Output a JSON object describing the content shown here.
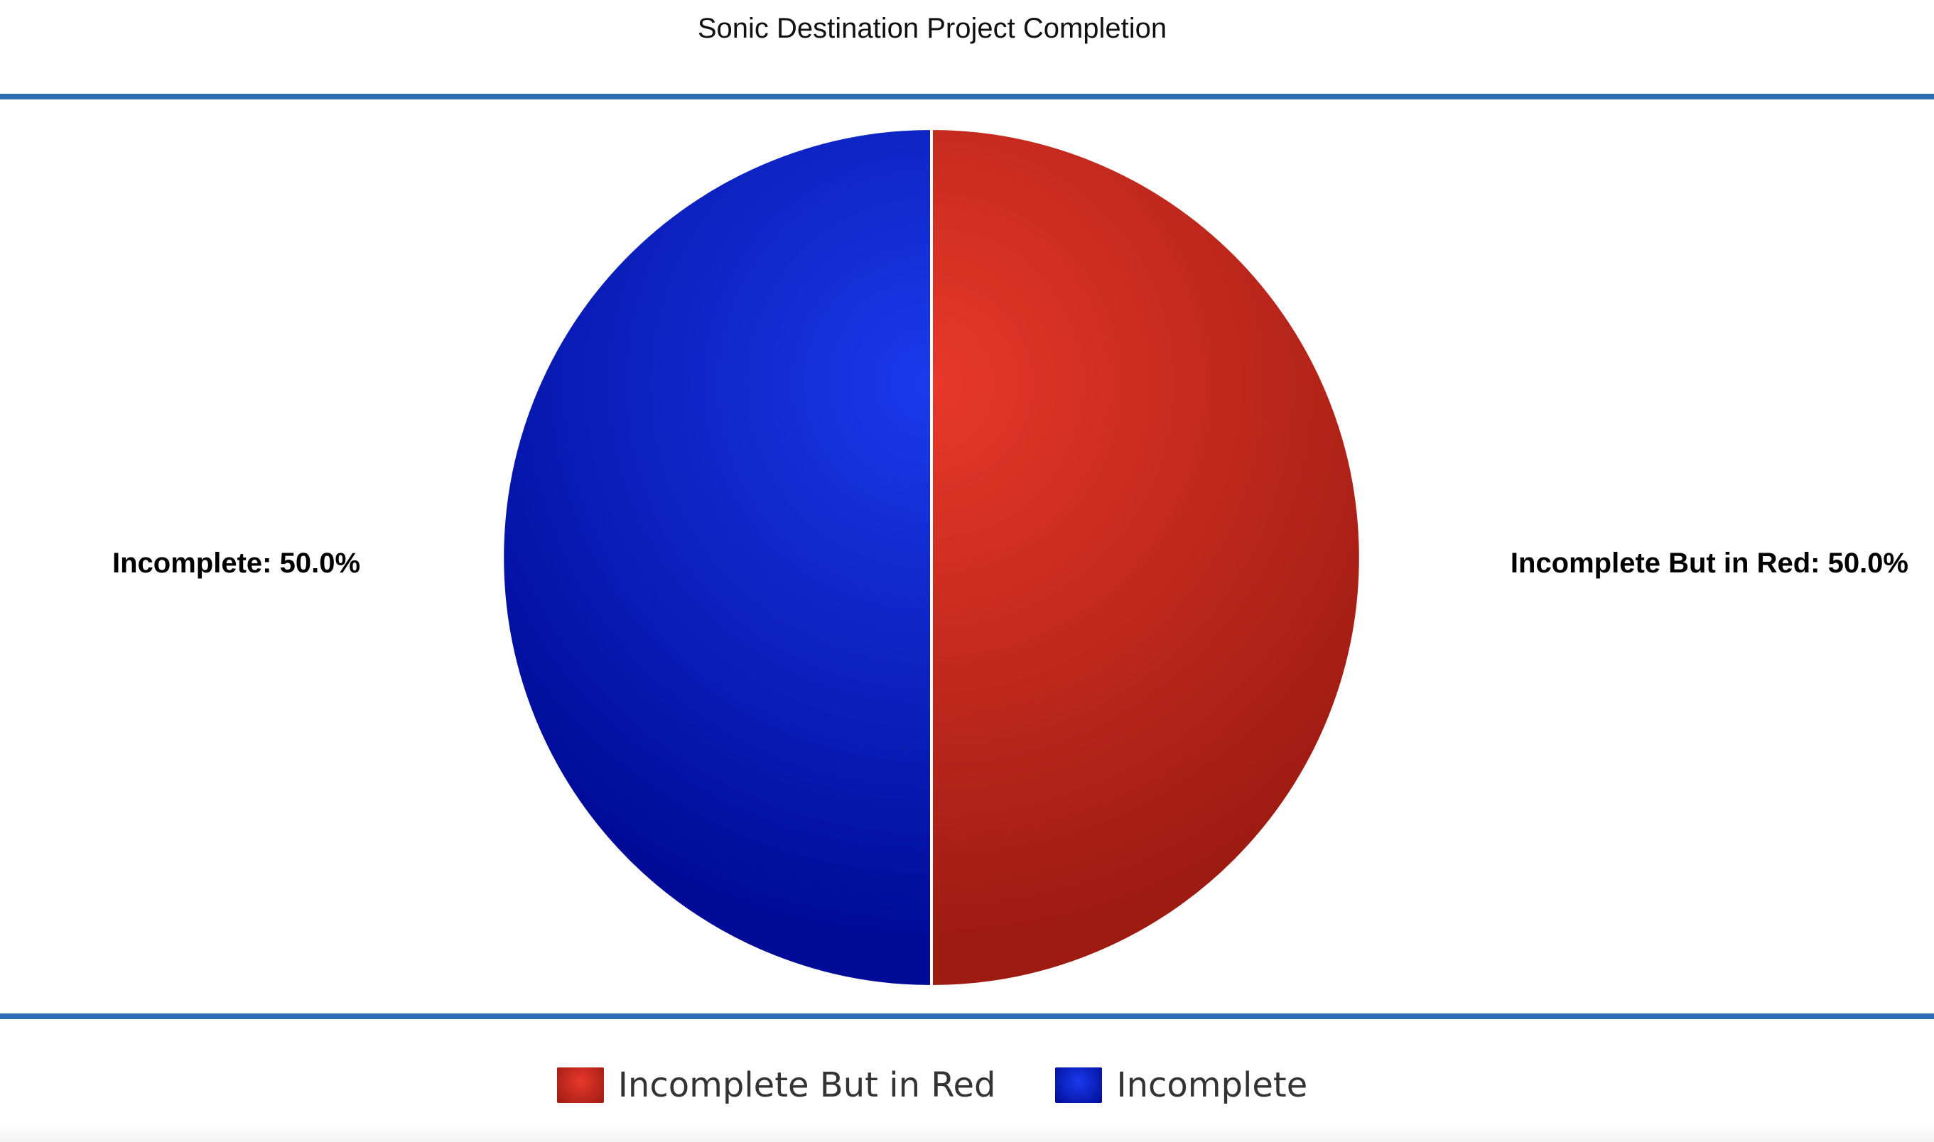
{
  "chart_data": {
    "type": "pie",
    "title": "Sonic Destination Project Completion",
    "slices": [
      {
        "name": "Incomplete But in Red",
        "value": 50.0,
        "label": "Incomplete But in Red: 50.0%",
        "color": "#cc2a1c"
      },
      {
        "name": "Incomplete",
        "value": 50.0,
        "label": "Incomplete: 50.0%",
        "color": "#0a1fb8"
      }
    ],
    "legend": [
      "Incomplete But in Red",
      "Incomplete"
    ],
    "legend_position": "bottom"
  },
  "colors": {
    "rule": "#2e6db3",
    "red_light": "#e8382a",
    "red_dark": "#9e1b12",
    "blue_light": "#1a3aec",
    "blue_dark": "#000c98"
  }
}
